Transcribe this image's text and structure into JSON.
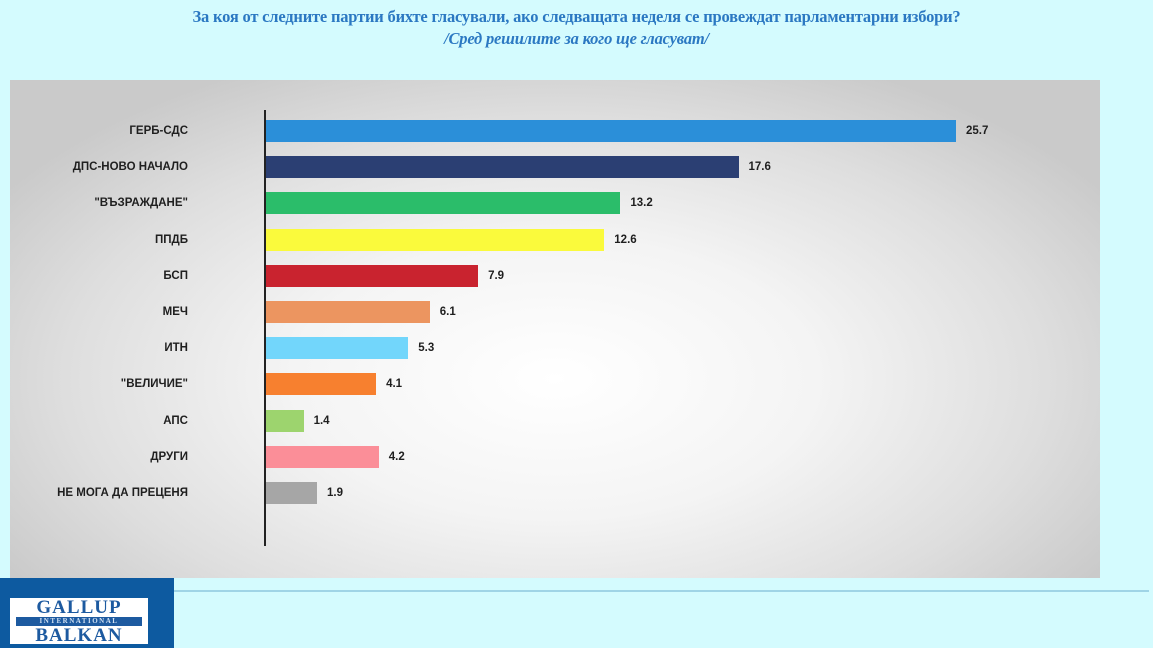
{
  "title": {
    "line1": "За коя от следните партии бихте  гласували,  ако следващата неделя се провеждат парламентарни избори?",
    "line2": "/Сред решилите за кого ще гласуват/"
  },
  "logo": {
    "line1": "GALLUP",
    "line2": "INTERNATIONAL",
    "line3": "BALKAN"
  },
  "chart_data": {
    "type": "bar",
    "orientation": "horizontal",
    "title": "За коя от следните партии бихте  гласували,  ако следващата неделя се провеждат парламентарни избори?",
    "subtitle": "/Сред решилите за кого ще гласуват/",
    "xlabel": "",
    "ylabel": "",
    "grid": false,
    "legend": null,
    "categories": [
      "ГЕРБ-СДС",
      "ДПС-НОВО НАЧАЛО",
      "\"ВЪЗРАЖДАНЕ\"",
      "ППДБ",
      "БСП",
      "МЕЧ",
      "ИТН",
      "\"ВЕЛИЧИЕ\"",
      "АПС",
      "ДРУГИ",
      "НЕ МОГА ДА ПРЕЦЕНЯ"
    ],
    "values": [
      25.7,
      17.6,
      13.2,
      12.6,
      7.9,
      6.1,
      5.3,
      4.1,
      1.4,
      4.2,
      1.9
    ],
    "value_labels": [
      "25.7",
      "17.6",
      "13.2",
      "12.6",
      "7.9",
      "6.1",
      "5.3",
      "4.1",
      "1.4",
      "4.2",
      "1.9"
    ],
    "colors": [
      "#2b8fd9",
      "#2b3f73",
      "#2bbd6a",
      "#fafa3c",
      "#c9232f",
      "#ec9560",
      "#72d6fb",
      "#f7802f",
      "#9dd46e",
      "#fb8e98",
      "#a6a6a6"
    ],
    "xlim": [
      0,
      26
    ]
  }
}
